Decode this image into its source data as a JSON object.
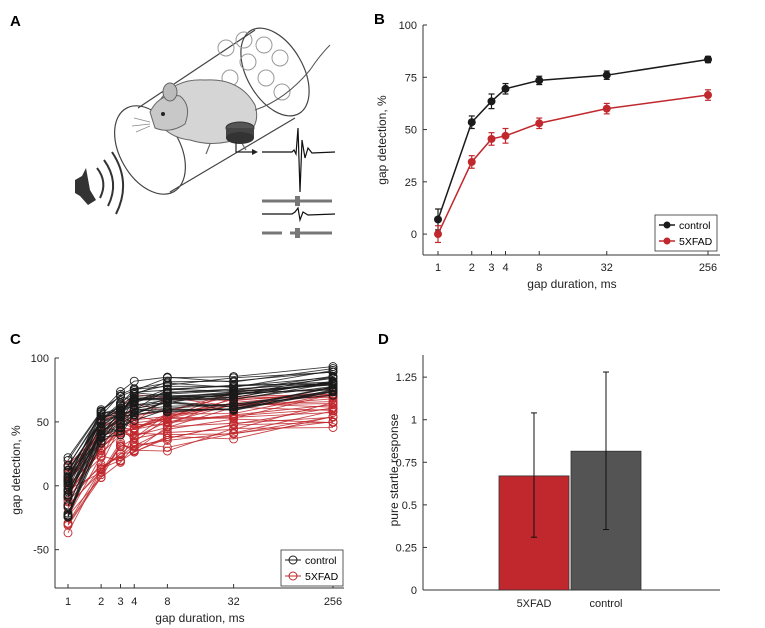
{
  "panels": {
    "A": {
      "letter": "A"
    },
    "B": {
      "letter": "B"
    },
    "C": {
      "letter": "C"
    },
    "D": {
      "letter": "D"
    }
  },
  "colors": {
    "control": "#1a1a1a",
    "fxad": "#c0282d",
    "bar_control": "#545454",
    "bar_fxad": "#c0282d"
  },
  "chart_data": [
    {
      "id": "B",
      "type": "line",
      "title": "",
      "xlabel": "gap duration, ms",
      "ylabel": "gap detection, %",
      "x_ticks": [
        1,
        2,
        3,
        4,
        8,
        32,
        256
      ],
      "x_tick_labels": [
        "1",
        "2",
        "3",
        "4",
        "8",
        "32",
        "256"
      ],
      "y_ticks": [
        0,
        25,
        50,
        75,
        100
      ],
      "y_tick_labels": [
        "0",
        "25",
        "50",
        "75",
        "100"
      ],
      "ylim": [
        -10,
        100
      ],
      "xscale": "log2",
      "legend_position": "bottom-right",
      "series": [
        {
          "name": "control",
          "x": [
            1,
            2,
            3,
            4,
            8,
            32,
            256
          ],
          "values": [
            7,
            53.5,
            63.5,
            69.5,
            73.5,
            76,
            83.5
          ],
          "err": [
            5,
            3,
            3.5,
            2.5,
            2,
            2,
            1.5
          ]
        },
        {
          "name": "5XFAD",
          "x": [
            1,
            2,
            3,
            4,
            8,
            32,
            256
          ],
          "values": [
            0,
            34.5,
            45.5,
            47,
            53,
            60,
            66.5
          ],
          "err": [
            4,
            3,
            3,
            3.5,
            2.5,
            2.5,
            2.5
          ]
        }
      ]
    },
    {
      "id": "C",
      "type": "line",
      "title": "",
      "xlabel": "gap duration, ms",
      "ylabel": "gap detection, %",
      "x_ticks": [
        1,
        2,
        3,
        4,
        8,
        32,
        256
      ],
      "x_tick_labels": [
        "1",
        "2",
        "3",
        "4",
        "8",
        "32",
        "256"
      ],
      "y_ticks": [
        -50,
        0,
        50,
        100
      ],
      "y_tick_labels": [
        "-50",
        "0",
        "50",
        "100"
      ],
      "ylim": [
        -80,
        100
      ],
      "xscale": "log2",
      "legend_position": "bottom-right",
      "series": [
        {
          "name": "control",
          "individual": true
        },
        {
          "name": "5XFAD",
          "individual": true
        }
      ]
    },
    {
      "id": "D",
      "type": "bar",
      "title": "",
      "xlabel": "",
      "ylabel": "pure startle response",
      "categories": [
        "5XFAD",
        "control"
      ],
      "values": [
        0.67,
        0.815
      ],
      "err_low": [
        0.31,
        0.355
      ],
      "err_high": [
        1.04,
        1.28
      ],
      "y_ticks": [
        0,
        0.25,
        0.5,
        0.75,
        1,
        1.25
      ],
      "y_tick_labels": [
        "0",
        "0.25",
        "0.5",
        "0.75",
        "1",
        "1.25"
      ],
      "ylim": [
        0,
        1.38
      ]
    }
  ]
}
